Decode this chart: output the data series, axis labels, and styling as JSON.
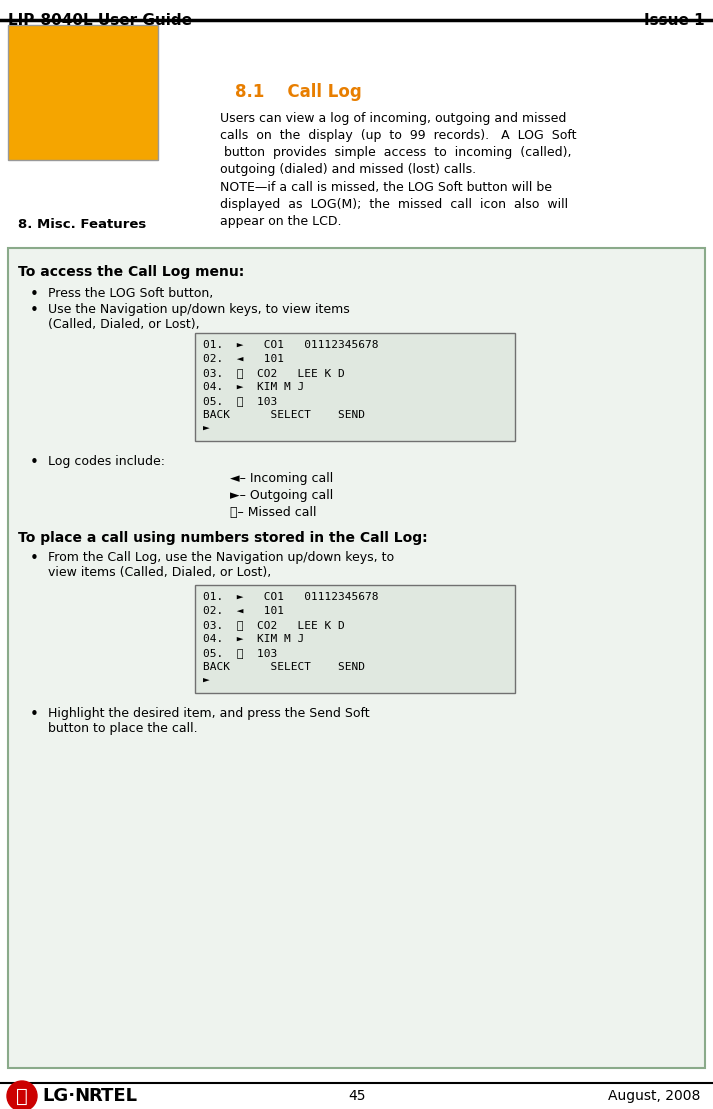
{
  "header_text": "LIP-8040L User Guide",
  "header_right": "Issue 1",
  "footer_page": "45",
  "footer_date": "August, 2008",
  "orange_box_title": "8. Misc. Features",
  "section_title": "8.1    Call Log",
  "section_title_color": "#E87E00",
  "body1_lines": [
    "Users can view a log of incoming, outgoing and missed",
    "calls  on  the  display  (up  to  99  records).   A  LOG  Soft",
    " button  provides  simple  access  to  incoming  (called),",
    "outgoing (dialed) and missed (lost) calls."
  ],
  "note_lines": [
    "NOTE—if a call is missed, the LOG Soft button will be",
    "displayed  as  LOG(M);  the  missed  call  icon  also  will",
    "appear on the LCD."
  ],
  "box_title": "To access the Call Log menu:",
  "bullet1": "Press the LOG Soft button,",
  "bullet2a": "Use the Navigation up/down keys, to view items",
  "bullet2b": "(Called, Dialed, or Lost),",
  "display_lines": [
    "01.  ►   CO1   01112345678",
    "02.  ◄   101",
    "03.  ⓢ  CO2   LEE K D",
    "04.  ►  KIM M J",
    "05.  ⓢ  103",
    "BACK      SELECT    SEND",
    "►"
  ],
  "bullet3": "Log codes include:",
  "log_codes": [
    "◄– Incoming call",
    "►– Outgoing call",
    "ⓢ– Missed call"
  ],
  "section2_title": "To place a call using numbers stored in the Call Log:",
  "bullet4a": "From the Call Log, use the Navigation up/down keys, to",
  "bullet4b": "view items (Called, Dialed, or Lost),",
  "bullet5a": "Highlight the desired item, and press the Send Soft",
  "bullet5b": "button to place the call.",
  "orange_color": "#F5A500",
  "box_bg": "#EEF3EE",
  "box_border": "#8AAA8A",
  "display_bg": "#E0E8E0",
  "display_border": "#707070"
}
